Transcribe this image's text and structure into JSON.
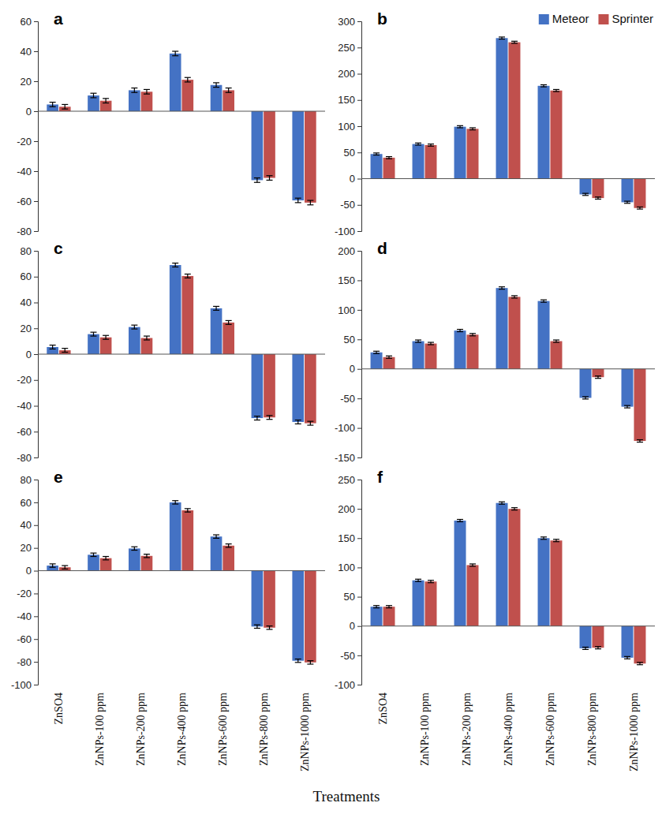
{
  "x_label": "Treatments",
  "chart_data": [
    {
      "type": "bar",
      "title": "a",
      "categories": [
        "ZnSO4",
        "ZnNPs-100 ppm",
        "ZnNPs-200 ppm",
        "ZnNPs-400 ppm",
        "ZnNPs-600 ppm",
        "ZnNPs-800 ppm",
        "ZnNPs-1000 ppm"
      ],
      "series": [
        {
          "name": "Meteor",
          "color": "#4472c4",
          "values": [
            4.5,
            10.5,
            14,
            38.5,
            17.5,
            -46,
            -59.5
          ],
          "errors": [
            1.5,
            1.5,
            1.5,
            1.5,
            1.5,
            1.5,
            1.5
          ]
        },
        {
          "name": "Sprinter",
          "color": "#c0504d",
          "values": [
            3,
            7,
            13,
            21,
            14,
            -44.5,
            -61
          ],
          "errors": [
            1.5,
            1.5,
            1.5,
            1.5,
            1.5,
            1.5,
            1.5
          ]
        }
      ],
      "ylim": [
        -80,
        60
      ],
      "yticks": [
        -80,
        -60,
        -40,
        -20,
        0,
        20,
        40,
        60
      ],
      "tick_labels": "y"
    },
    {
      "type": "bar",
      "title": "b",
      "categories": [
        "ZnSO4",
        "ZnNPs-100 ppm",
        "ZnNPs-200 ppm",
        "ZnNPs-400 ppm",
        "ZnNPs-600 ppm",
        "ZnNPs-800 ppm",
        "ZnNPs-1000 ppm"
      ],
      "series": [
        {
          "name": "Meteor",
          "color": "#4472c4",
          "values": [
            47,
            66,
            99,
            268,
            177,
            -30,
            -45
          ],
          "errors": [
            2,
            2,
            2,
            2,
            2,
            2,
            2
          ]
        },
        {
          "name": "Sprinter",
          "color": "#c0504d",
          "values": [
            40,
            64,
            95,
            260,
            168,
            -37,
            -56
          ],
          "errors": [
            2,
            2,
            2,
            2,
            2,
            2,
            2
          ]
        }
      ],
      "ylim": [
        -100,
        300
      ],
      "yticks": [
        -100,
        -50,
        0,
        50,
        100,
        150,
        200,
        250,
        300
      ],
      "tick_labels": "y",
      "legend": "upper right"
    },
    {
      "type": "bar",
      "title": "c",
      "categories": [
        "ZnSO4",
        "ZnNPs-100 ppm",
        "ZnNPs-200 ppm",
        "ZnNPs-400 ppm",
        "ZnNPs-600 ppm",
        "ZnNPs-800 ppm",
        "ZnNPs-1000 ppm"
      ],
      "series": [
        {
          "name": "Meteor",
          "color": "#4472c4",
          "values": [
            5.5,
            15.5,
            21,
            69,
            35.5,
            -49.5,
            -52.5
          ],
          "errors": [
            1.5,
            1.5,
            1.5,
            1.5,
            1.5,
            1.5,
            1.5
          ]
        },
        {
          "name": "Sprinter",
          "color": "#c0504d",
          "values": [
            3,
            13,
            12.5,
            60.5,
            24.5,
            -49,
            -53.5
          ],
          "errors": [
            1.5,
            1.5,
            1.5,
            1.5,
            1.5,
            1.5,
            1.5
          ]
        }
      ],
      "ylim": [
        -80,
        80
      ],
      "yticks": [
        -80,
        -60,
        -40,
        -20,
        0,
        20,
        40,
        60,
        80
      ],
      "tick_labels": "y"
    },
    {
      "type": "bar",
      "title": "d",
      "categories": [
        "ZnSO4",
        "ZnNPs-100 ppm",
        "ZnNPs-200 ppm",
        "ZnNPs-400 ppm",
        "ZnNPs-600 ppm",
        "ZnNPs-800 ppm",
        "ZnNPs-1000 ppm"
      ],
      "series": [
        {
          "name": "Meteor",
          "color": "#4472c4",
          "values": [
            28,
            47,
            65,
            137,
            115,
            -49,
            -64
          ],
          "errors": [
            2,
            2,
            2,
            2,
            2,
            2,
            2
          ]
        },
        {
          "name": "Sprinter",
          "color": "#c0504d",
          "values": [
            20,
            43,
            58,
            122,
            47,
            -14,
            -122
          ],
          "errors": [
            2,
            2,
            2,
            2,
            2,
            2,
            2
          ]
        }
      ],
      "ylim": [
        -150,
        200
      ],
      "yticks": [
        -150,
        -100,
        -50,
        0,
        50,
        100,
        150,
        200
      ],
      "tick_labels": "y"
    },
    {
      "type": "bar",
      "title": "e",
      "categories": [
        "ZnSO4",
        "ZnNPs-100 ppm",
        "ZnNPs-200 ppm",
        "ZnNPs-400 ppm",
        "ZnNPs-600 ppm",
        "ZnNPs-800 ppm",
        "ZnNPs-1000 ppm"
      ],
      "series": [
        {
          "name": "Meteor",
          "color": "#4472c4",
          "values": [
            4.5,
            14,
            19.5,
            60,
            30,
            -49,
            -79
          ],
          "errors": [
            1.5,
            1.5,
            1.5,
            1.5,
            1.5,
            1.5,
            1.5
          ]
        },
        {
          "name": "Sprinter",
          "color": "#c0504d",
          "values": [
            3,
            11,
            13,
            53,
            22,
            -50,
            -80.5
          ],
          "errors": [
            1.5,
            1.5,
            1.5,
            1.5,
            1.5,
            1.5,
            1.5
          ]
        }
      ],
      "ylim": [
        -100,
        80
      ],
      "yticks": [
        -100,
        -80,
        -60,
        -40,
        -20,
        0,
        20,
        40,
        60,
        80
      ]
    },
    {
      "type": "bar",
      "title": "f",
      "categories": [
        "ZnSO4",
        "ZnNPs-100 ppm",
        "ZnNPs-200 ppm",
        "ZnNPs-400 ppm",
        "ZnNPs-600 ppm",
        "ZnNPs-800 ppm",
        "ZnNPs-1000 ppm"
      ],
      "series": [
        {
          "name": "Meteor",
          "color": "#4472c4",
          "values": [
            33,
            78,
            180,
            210,
            150,
            -38,
            -54
          ],
          "errors": [
            2,
            2,
            2,
            2,
            2,
            2,
            2
          ]
        },
        {
          "name": "Sprinter",
          "color": "#c0504d",
          "values": [
            33,
            76,
            104,
            200,
            146,
            -37,
            -64
          ],
          "errors": [
            2,
            2,
            2,
            2,
            2,
            2,
            2
          ]
        }
      ],
      "ylim": [
        -100,
        250
      ],
      "yticks": [
        -100,
        -50,
        0,
        50,
        100,
        150,
        200,
        250
      ]
    }
  ]
}
